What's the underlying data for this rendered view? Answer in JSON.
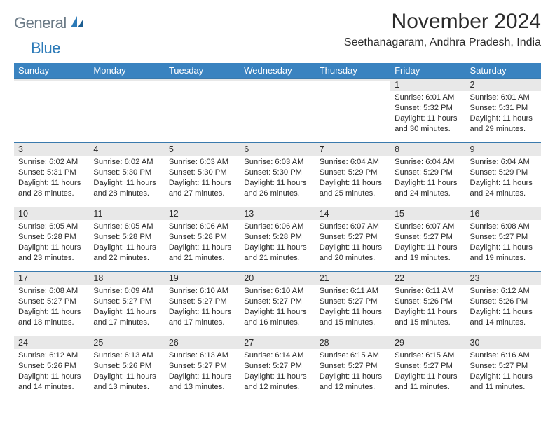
{
  "logo": {
    "general": "General",
    "blue": "Blue"
  },
  "header": {
    "month_title": "November 2024",
    "location": "Seethanagaram, Andhra Pradesh, India"
  },
  "columns": [
    "Sunday",
    "Monday",
    "Tuesday",
    "Wednesday",
    "Thursday",
    "Friday",
    "Saturday"
  ],
  "colors": {
    "header_bg": "#3a83c0",
    "header_text": "#ffffff",
    "daynum_bg": "#e8e8e8",
    "rule": "#3a7aad",
    "logo_gray": "#6b7a86",
    "logo_blue": "#2b7ab8"
  },
  "weeks": [
    [
      {
        "n": "",
        "sunrise": "",
        "sunset": "",
        "daylight": ""
      },
      {
        "n": "",
        "sunrise": "",
        "sunset": "",
        "daylight": ""
      },
      {
        "n": "",
        "sunrise": "",
        "sunset": "",
        "daylight": ""
      },
      {
        "n": "",
        "sunrise": "",
        "sunset": "",
        "daylight": ""
      },
      {
        "n": "",
        "sunrise": "",
        "sunset": "",
        "daylight": ""
      },
      {
        "n": "1",
        "sunrise": "Sunrise: 6:01 AM",
        "sunset": "Sunset: 5:32 PM",
        "daylight": "Daylight: 11 hours and 30 minutes."
      },
      {
        "n": "2",
        "sunrise": "Sunrise: 6:01 AM",
        "sunset": "Sunset: 5:31 PM",
        "daylight": "Daylight: 11 hours and 29 minutes."
      }
    ],
    [
      {
        "n": "3",
        "sunrise": "Sunrise: 6:02 AM",
        "sunset": "Sunset: 5:31 PM",
        "daylight": "Daylight: 11 hours and 28 minutes."
      },
      {
        "n": "4",
        "sunrise": "Sunrise: 6:02 AM",
        "sunset": "Sunset: 5:30 PM",
        "daylight": "Daylight: 11 hours and 28 minutes."
      },
      {
        "n": "5",
        "sunrise": "Sunrise: 6:03 AM",
        "sunset": "Sunset: 5:30 PM",
        "daylight": "Daylight: 11 hours and 27 minutes."
      },
      {
        "n": "6",
        "sunrise": "Sunrise: 6:03 AM",
        "sunset": "Sunset: 5:30 PM",
        "daylight": "Daylight: 11 hours and 26 minutes."
      },
      {
        "n": "7",
        "sunrise": "Sunrise: 6:04 AM",
        "sunset": "Sunset: 5:29 PM",
        "daylight": "Daylight: 11 hours and 25 minutes."
      },
      {
        "n": "8",
        "sunrise": "Sunrise: 6:04 AM",
        "sunset": "Sunset: 5:29 PM",
        "daylight": "Daylight: 11 hours and 24 minutes."
      },
      {
        "n": "9",
        "sunrise": "Sunrise: 6:04 AM",
        "sunset": "Sunset: 5:29 PM",
        "daylight": "Daylight: 11 hours and 24 minutes."
      }
    ],
    [
      {
        "n": "10",
        "sunrise": "Sunrise: 6:05 AM",
        "sunset": "Sunset: 5:28 PM",
        "daylight": "Daylight: 11 hours and 23 minutes."
      },
      {
        "n": "11",
        "sunrise": "Sunrise: 6:05 AM",
        "sunset": "Sunset: 5:28 PM",
        "daylight": "Daylight: 11 hours and 22 minutes."
      },
      {
        "n": "12",
        "sunrise": "Sunrise: 6:06 AM",
        "sunset": "Sunset: 5:28 PM",
        "daylight": "Daylight: 11 hours and 21 minutes."
      },
      {
        "n": "13",
        "sunrise": "Sunrise: 6:06 AM",
        "sunset": "Sunset: 5:28 PM",
        "daylight": "Daylight: 11 hours and 21 minutes."
      },
      {
        "n": "14",
        "sunrise": "Sunrise: 6:07 AM",
        "sunset": "Sunset: 5:27 PM",
        "daylight": "Daylight: 11 hours and 20 minutes."
      },
      {
        "n": "15",
        "sunrise": "Sunrise: 6:07 AM",
        "sunset": "Sunset: 5:27 PM",
        "daylight": "Daylight: 11 hours and 19 minutes."
      },
      {
        "n": "16",
        "sunrise": "Sunrise: 6:08 AM",
        "sunset": "Sunset: 5:27 PM",
        "daylight": "Daylight: 11 hours and 19 minutes."
      }
    ],
    [
      {
        "n": "17",
        "sunrise": "Sunrise: 6:08 AM",
        "sunset": "Sunset: 5:27 PM",
        "daylight": "Daylight: 11 hours and 18 minutes."
      },
      {
        "n": "18",
        "sunrise": "Sunrise: 6:09 AM",
        "sunset": "Sunset: 5:27 PM",
        "daylight": "Daylight: 11 hours and 17 minutes."
      },
      {
        "n": "19",
        "sunrise": "Sunrise: 6:10 AM",
        "sunset": "Sunset: 5:27 PM",
        "daylight": "Daylight: 11 hours and 17 minutes."
      },
      {
        "n": "20",
        "sunrise": "Sunrise: 6:10 AM",
        "sunset": "Sunset: 5:27 PM",
        "daylight": "Daylight: 11 hours and 16 minutes."
      },
      {
        "n": "21",
        "sunrise": "Sunrise: 6:11 AM",
        "sunset": "Sunset: 5:27 PM",
        "daylight": "Daylight: 11 hours and 15 minutes."
      },
      {
        "n": "22",
        "sunrise": "Sunrise: 6:11 AM",
        "sunset": "Sunset: 5:26 PM",
        "daylight": "Daylight: 11 hours and 15 minutes."
      },
      {
        "n": "23",
        "sunrise": "Sunrise: 6:12 AM",
        "sunset": "Sunset: 5:26 PM",
        "daylight": "Daylight: 11 hours and 14 minutes."
      }
    ],
    [
      {
        "n": "24",
        "sunrise": "Sunrise: 6:12 AM",
        "sunset": "Sunset: 5:26 PM",
        "daylight": "Daylight: 11 hours and 14 minutes."
      },
      {
        "n": "25",
        "sunrise": "Sunrise: 6:13 AM",
        "sunset": "Sunset: 5:26 PM",
        "daylight": "Daylight: 11 hours and 13 minutes."
      },
      {
        "n": "26",
        "sunrise": "Sunrise: 6:13 AM",
        "sunset": "Sunset: 5:27 PM",
        "daylight": "Daylight: 11 hours and 13 minutes."
      },
      {
        "n": "27",
        "sunrise": "Sunrise: 6:14 AM",
        "sunset": "Sunset: 5:27 PM",
        "daylight": "Daylight: 11 hours and 12 minutes."
      },
      {
        "n": "28",
        "sunrise": "Sunrise: 6:15 AM",
        "sunset": "Sunset: 5:27 PM",
        "daylight": "Daylight: 11 hours and 12 minutes."
      },
      {
        "n": "29",
        "sunrise": "Sunrise: 6:15 AM",
        "sunset": "Sunset: 5:27 PM",
        "daylight": "Daylight: 11 hours and 11 minutes."
      },
      {
        "n": "30",
        "sunrise": "Sunrise: 6:16 AM",
        "sunset": "Sunset: 5:27 PM",
        "daylight": "Daylight: 11 hours and 11 minutes."
      }
    ]
  ]
}
